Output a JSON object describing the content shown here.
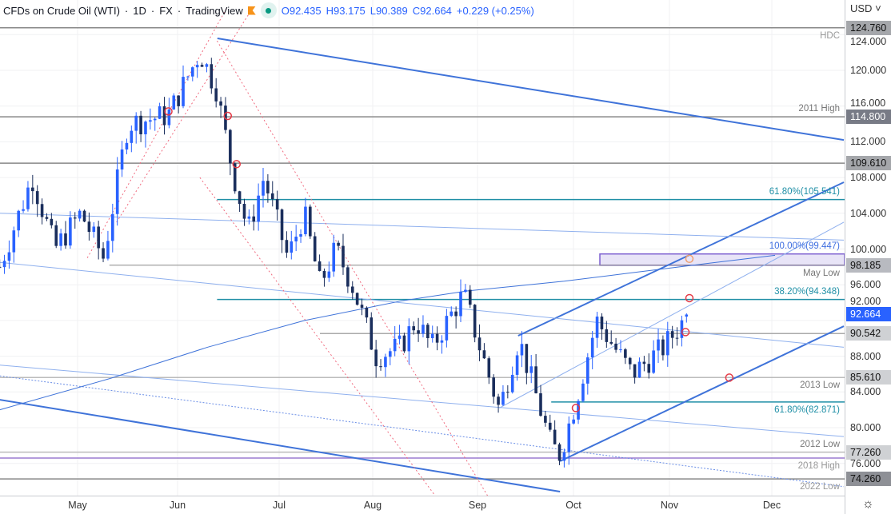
{
  "header": {
    "title": "CFDs on Crude Oil (WTI)",
    "interval": "1D",
    "source": "FX",
    "platform": "TradingView",
    "open": "O92.435",
    "high": "H93.175",
    "low": "L90.389",
    "close": "C92.664",
    "change": "+0.229 (+0.25%)"
  },
  "axis": {
    "currency": "USD",
    "ticks": [
      "124.000",
      "120.000",
      "116.000",
      "112.000",
      "108.000",
      "104.000",
      "100.000",
      "96.000",
      "92.000",
      "88.000",
      "84.000",
      "80.000",
      "76.000"
    ],
    "months": [
      "May",
      "Jun",
      "Jul",
      "Aug",
      "Sep",
      "Oct",
      "Nov",
      "Dec"
    ]
  },
  "price_tags": [
    {
      "text": "124.760",
      "price": 124.76,
      "bg": "#a5a7ab",
      "fg": "#111"
    },
    {
      "text": "114.800",
      "price": 114.8,
      "bg": "#787b86",
      "fg": "#fff"
    },
    {
      "text": "109.610",
      "price": 109.61,
      "bg": "#a5a7ab",
      "fg": "#111"
    },
    {
      "text": "98.185",
      "price": 98.185,
      "bg": "#b8bac0",
      "fg": "#111"
    },
    {
      "text": "92.664",
      "price": 92.664,
      "bg": "#2962ff",
      "fg": "#fff"
    },
    {
      "text": "90.542",
      "price": 90.542,
      "bg": "#cfd1d4",
      "fg": "#111"
    },
    {
      "text": "85.610",
      "price": 85.61,
      "bg": "#cfd1d4",
      "fg": "#111"
    },
    {
      "text": "77.260",
      "price": 77.26,
      "bg": "#cfd1d4",
      "fg": "#111"
    },
    {
      "text": "74.260",
      "price": 74.26,
      "bg": "#8e9096",
      "fg": "#111"
    }
  ],
  "level_labels": [
    {
      "text": "HDC",
      "price": 124.76,
      "color": "#999"
    },
    {
      "text": "2011 High",
      "price": 114.8,
      "color": "#777"
    },
    {
      "text": "61.80%(105.541)",
      "price": 105.541,
      "color": "#1f8fa6"
    },
    {
      "text": "100.00%(99.447)",
      "price": 99.447,
      "color": "#3f6fe0"
    },
    {
      "text": "May Low",
      "price": 98.185,
      "color": "#777"
    },
    {
      "text": "38.20%(94.348)",
      "price": 94.348,
      "color": "#1f8fa6"
    },
    {
      "text": "2013 Low",
      "price": 85.61,
      "color": "#777"
    },
    {
      "text": "61.80%(82.871)",
      "price": 82.871,
      "color": "#1f8fa6"
    },
    {
      "text": "2012 Low",
      "price": 77.26,
      "color": "#777"
    },
    {
      "text": "2018 High",
      "price": 76.6,
      "color": "#999"
    },
    {
      "text": "2022 Low",
      "price": 74.26,
      "color": "#999"
    }
  ],
  "chart_data": {
    "type": "candlestick",
    "title": "CFDs on Crude Oil (WTI) 1D",
    "ylabel": "USD",
    "ylim": [
      73,
      127
    ],
    "x_unit": "days since May 1",
    "price_path": [
      [
        -24,
        98
      ],
      [
        -14,
        108
      ],
      [
        -7,
        100
      ],
      [
        1,
        104
      ],
      [
        8,
        99
      ],
      [
        15.5,
        114
      ],
      [
        28,
        115
      ],
      [
        37.7,
        122
      ],
      [
        42.7,
        118
      ],
      [
        47.6,
        109
      ],
      [
        52.5,
        102
      ],
      [
        57.4,
        108
      ],
      [
        64.8,
        99
      ],
      [
        69.8,
        104
      ],
      [
        74.7,
        96
      ],
      [
        79.6,
        100
      ],
      [
        84.6,
        96
      ],
      [
        92,
        88
      ],
      [
        99.4,
        89
      ],
      [
        104.3,
        92
      ],
      [
        109.2,
        89
      ],
      [
        119,
        95
      ],
      [
        124,
        89
      ],
      [
        130,
        82
      ],
      [
        136,
        90
      ],
      [
        146,
        78
      ],
      [
        148.7,
        77
      ],
      [
        153.6,
        83
      ],
      [
        160,
        92
      ],
      [
        170.9,
        86
      ],
      [
        180.7,
        89
      ],
      [
        188.1,
        92.66
      ]
    ],
    "levels": [
      {
        "price": 124.76,
        "from": -30,
        "color": "#888",
        "w": 1.5
      },
      {
        "price": 114.8,
        "from": -30,
        "color": "#888",
        "w": 1.5
      },
      {
        "price": 109.61,
        "from": -30,
        "color": "#888",
        "w": 1.5
      },
      {
        "price": 105.541,
        "from": 43,
        "color": "#1f8fa6",
        "w": 1.5
      },
      {
        "price": 98.185,
        "from": 9.8,
        "color": "#888",
        "w": 1
      },
      {
        "price": 94.348,
        "from": 43,
        "color": "#1f8fa6",
        "w": 1.5
      },
      {
        "price": 90.542,
        "from": 74.7,
        "color": "#aaa",
        "w": 1.5
      },
      {
        "price": 85.61,
        "from": -30,
        "color": "#bbb",
        "w": 1.5
      },
      {
        "price": 82.871,
        "from": 146,
        "color": "#1f8fa6",
        "w": 1.5
      },
      {
        "price": 77.26,
        "from": -30,
        "color": "#bbb",
        "w": 1.5
      },
      {
        "price": 76.6,
        "from": -30,
        "color": "#9b7bd0",
        "w": 1.5
      },
      {
        "price": 74.26,
        "from": -30,
        "color": "#888",
        "w": 1.5
      }
    ],
    "trendlines": [
      {
        "p": [
          [
            43.1,
            123.58
          ],
          [
            236.2,
            112.2
          ]
        ],
        "color": "#3f73d9",
        "w": 2
      },
      {
        "p": [
          [
            -24,
            83.13
          ],
          [
            148.7,
            72.84
          ]
        ],
        "color": "#3f73d9",
        "w": 2
      },
      {
        "p": [
          [
            135.8,
            90.29
          ],
          [
            236.2,
            107.47
          ]
        ],
        "color": "#3f73d9",
        "w": 2
      },
      {
        "p": [
          [
            148.7,
            76.24
          ],
          [
            236.2,
            91.36
          ]
        ],
        "color": "#3f73d9",
        "w": 2
      },
      {
        "p": [
          [
            -24,
            98.5
          ],
          [
            236.2,
            89
          ]
        ],
        "color": "#8fb0ee",
        "w": 1
      },
      {
        "p": [
          [
            -24,
            104
          ],
          [
            236.2,
            101
          ]
        ],
        "color": "#8fb0ee",
        "w": 1
      },
      {
        "p": [
          [
            -24,
            87
          ],
          [
            236.2,
            79
          ]
        ],
        "color": "#8fb0ee",
        "w": 1
      },
      {
        "p": [
          [
            130,
            82.2
          ],
          [
            236.2,
            103
          ]
        ],
        "color": "#8fb0ee",
        "w": 1
      },
      {
        "p": [
          [
            -24,
            85.8
          ],
          [
            236.2,
            73.4
          ],
          "dot"
        ],
        "color": "#6a8ee6",
        "w": 1,
        "dash": "2,2"
      },
      {
        "p": [
          [
            3,
            99
          ],
          [
            46,
            127
          ]
        ],
        "color": "#f06b7f",
        "w": 1,
        "dash": "2,3"
      },
      {
        "p": [
          [
            12,
            103
          ],
          [
            54,
            127
          ]
        ],
        "color": "#f06b7f",
        "w": 1,
        "dash": "2,3"
      },
      {
        "p": [
          [
            43,
            123.3
          ],
          [
            127,
            72
          ]
        ],
        "color": "#f06b7f",
        "w": 1,
        "dash": "2,3"
      },
      {
        "p": [
          [
            37.7,
            108
          ],
          [
            111,
            72
          ]
        ],
        "color": "#f06b7f",
        "w": 1,
        "dash": "2,3"
      }
    ],
    "ma200": [
      [
        -24,
        82
      ],
      [
        10,
        85.5
      ],
      [
        40,
        89
      ],
      [
        70,
        92
      ],
      [
        100,
        94.2
      ],
      [
        120,
        95.3
      ],
      [
        150,
        96.4
      ],
      [
        170,
        97.3
      ],
      [
        190,
        98.2
      ],
      [
        215,
        99.3
      ]
    ],
    "markers": [
      {
        "d": 28,
        "p": 115.4,
        "color": "#e53945"
      },
      {
        "d": 46.3,
        "p": 114.9,
        "color": "#e53945"
      },
      {
        "d": 49,
        "p": 109.5,
        "color": "#e53945"
      },
      {
        "d": 153.6,
        "p": 82.2,
        "color": "#e53945"
      },
      {
        "d": 187.4,
        "p": 90.7,
        "color": "#e53945"
      },
      {
        "d": 188.6,
        "p": 94.5,
        "color": "#e53945"
      },
      {
        "d": 200.9,
        "p": 85.6,
        "color": "#e53945"
      },
      {
        "d": 188.6,
        "p": 98.9,
        "color": "#f0a070"
      }
    ],
    "up_color": "#2962ff",
    "down_color": "#1a2e5c"
  },
  "colors": {
    "accent": "#2962ff"
  }
}
